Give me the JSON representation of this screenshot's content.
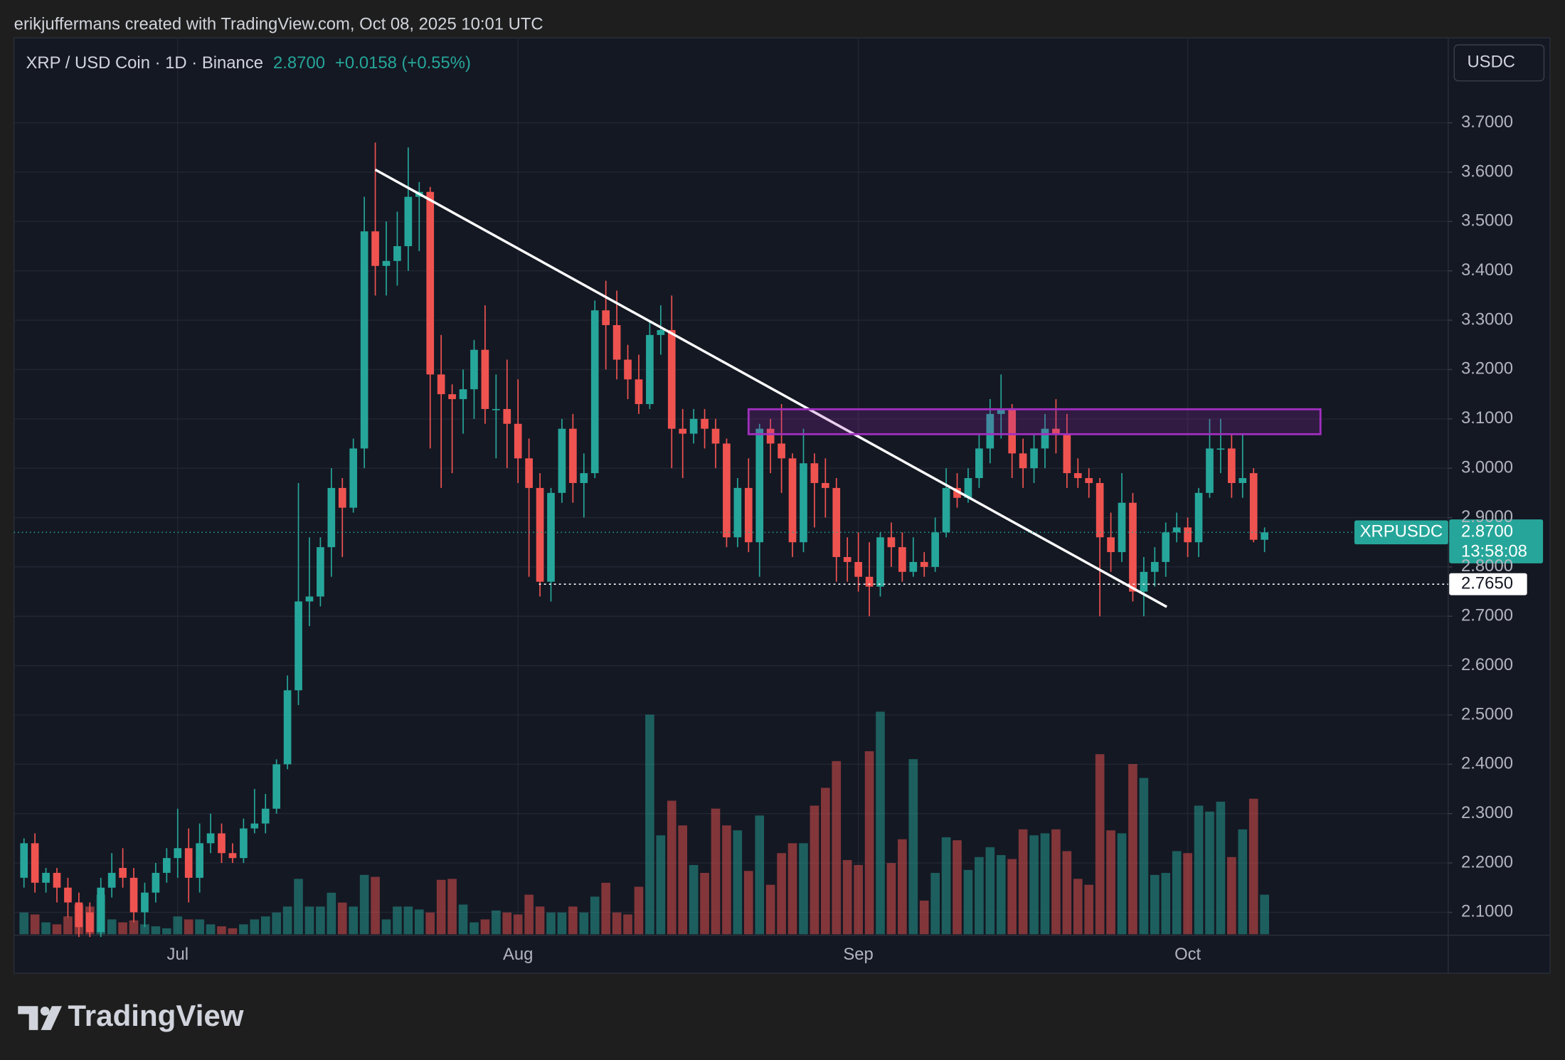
{
  "header": {
    "attribution": "erikjuffermans created with TradingView.com, Oct 08, 2025 10:01 UTC"
  },
  "chart_data": {
    "type": "candlestick",
    "title": "XRP / USD Coin · 1D · Binance",
    "last_price": {
      "value": 2.87,
      "label": "2.8700"
    },
    "change": "+0.0158 (+0.55%)",
    "symbol": "XRPUSDC",
    "countdown": "13:58:08",
    "currency": "USDC",
    "level": {
      "value": 2.765,
      "label": "2.7650"
    },
    "up_color": "#26a69a",
    "down_color": "#ef5350",
    "categories": [
      null,
      null,
      null,
      null,
      null,
      null,
      null,
      null,
      null,
      null,
      null,
      null,
      null,
      null,
      "Jul",
      null,
      null,
      null,
      null,
      null,
      null,
      null,
      null,
      null,
      null,
      null,
      null,
      null,
      null,
      null,
      null,
      null,
      null,
      null,
      null,
      null,
      null,
      null,
      null,
      null,
      null,
      null,
      null,
      null,
      null,
      "Aug",
      null,
      null,
      null,
      null,
      null,
      null,
      null,
      null,
      null,
      null,
      null,
      null,
      null,
      null,
      null,
      null,
      null,
      null,
      null,
      null,
      null,
      null,
      null,
      null,
      null,
      null,
      null,
      null,
      null,
      null,
      "Sep",
      null,
      null,
      null,
      null,
      null,
      null,
      null,
      null,
      null,
      null,
      null,
      null,
      null,
      null,
      null,
      null,
      null,
      null,
      null,
      null,
      null,
      null,
      null,
      null,
      null,
      null,
      null,
      null,
      null,
      "Oct",
      null,
      null,
      null,
      null,
      null,
      null,
      null
    ],
    "open": [
      2.17,
      2.24,
      2.16,
      2.18,
      2.15,
      2.12,
      2.1,
      2.06,
      2.15,
      2.19,
      2.17,
      2.1,
      2.14,
      2.18,
      2.21,
      2.23,
      2.17,
      2.24,
      2.26,
      2.22,
      2.21,
      2.27,
      2.28,
      2.31,
      2.4,
      2.55,
      2.73,
      2.74,
      2.84,
      2.96,
      2.92,
      3.04,
      3.48,
      3.41,
      3.42,
      3.45,
      3.55,
      3.56,
      3.19,
      3.15,
      3.14,
      3.16,
      3.24,
      3.12,
      3.12,
      3.09,
      3.02,
      2.96,
      2.77,
      2.95,
      3.08,
      2.97,
      2.99,
      3.32,
      3.29,
      3.22,
      3.18,
      3.13,
      3.27,
      3.28,
      3.08,
      3.07,
      3.1,
      3.08,
      3.05,
      2.86,
      2.96,
      2.85,
      3.08,
      3.05,
      3.02,
      2.85,
      3.01,
      2.97,
      2.96,
      2.82,
      2.81,
      2.78,
      2.76,
      2.86,
      2.84,
      2.79,
      2.81,
      2.8,
      2.87,
      2.96,
      2.94,
      2.98,
      3.04,
      3.11,
      3.12,
      3.03,
      3.0,
      3.04,
      3.08,
      3.07,
      2.99,
      2.98,
      2.97,
      2.86,
      2.83,
      2.93,
      2.75,
      2.79,
      2.81,
      2.87,
      2.88,
      2.85,
      2.95,
      3.04,
      3.04,
      2.97,
      2.99,
      2.855
    ],
    "high": [
      2.25,
      2.26,
      2.19,
      2.19,
      2.17,
      2.14,
      2.12,
      2.17,
      2.22,
      2.23,
      2.19,
      2.16,
      2.2,
      2.23,
      2.31,
      2.27,
      2.28,
      2.3,
      2.28,
      2.24,
      2.29,
      2.35,
      2.34,
      2.41,
      2.58,
      2.97,
      2.86,
      2.86,
      3.0,
      2.98,
      3.06,
      3.55,
      3.66,
      3.5,
      3.52,
      3.65,
      3.58,
      3.57,
      3.27,
      3.17,
      3.2,
      3.26,
      3.33,
      3.19,
      3.22,
      3.18,
      3.06,
      2.99,
      2.96,
      3.1,
      3.11,
      3.03,
      3.34,
      3.38,
      3.36,
      3.25,
      3.23,
      3.3,
      3.33,
      3.35,
      3.12,
      3.12,
      3.12,
      3.1,
      3.06,
      2.98,
      3.02,
      3.09,
      3.1,
      3.13,
      3.03,
      3.08,
      3.03,
      3.02,
      2.98,
      2.86,
      2.87,
      2.85,
      2.87,
      2.89,
      2.87,
      2.86,
      2.83,
      2.9,
      3.0,
      2.99,
      3.0,
      3.07,
      3.14,
      3.19,
      3.13,
      3.06,
      3.07,
      3.11,
      3.14,
      3.11,
      3.02,
      3.0,
      2.98,
      2.91,
      2.99,
      2.95,
      2.82,
      2.84,
      2.89,
      2.91,
      2.9,
      2.96,
      3.1,
      3.1,
      3.07,
      3.07,
      3.0,
      2.88
    ],
    "low": [
      2.15,
      2.14,
      2.14,
      2.12,
      2.09,
      2.05,
      2.05,
      2.05,
      2.13,
      2.15,
      2.08,
      2.07,
      2.12,
      2.16,
      2.17,
      2.12,
      2.14,
      2.22,
      2.2,
      2.2,
      2.2,
      2.26,
      2.26,
      2.3,
      2.39,
      2.52,
      2.68,
      2.72,
      2.78,
      2.82,
      2.91,
      3.0,
      3.35,
      3.35,
      3.37,
      3.4,
      3.44,
      3.04,
      2.96,
      2.99,
      3.07,
      3.1,
      3.09,
      3.02,
      3.0,
      2.97,
      2.78,
      2.74,
      2.73,
      2.93,
      2.93,
      2.9,
      2.98,
      3.2,
      3.18,
      3.14,
      3.11,
      3.12,
      3.23,
      3.0,
      2.98,
      3.05,
      3.04,
      3.0,
      2.84,
      2.84,
      2.83,
      2.78,
      2.99,
      2.95,
      2.82,
      2.83,
      2.88,
      2.9,
      2.77,
      2.77,
      2.75,
      2.7,
      2.74,
      2.8,
      2.77,
      2.78,
      2.78,
      2.79,
      2.86,
      2.92,
      2.93,
      2.96,
      3.01,
      3.06,
      2.98,
      2.96,
      2.97,
      3.0,
      3.03,
      2.96,
      2.96,
      2.94,
      2.7,
      2.79,
      2.81,
      2.73,
      2.7,
      2.76,
      2.78,
      2.85,
      2.82,
      2.82,
      2.94,
      2.99,
      2.94,
      2.94,
      2.85,
      2.83
    ],
    "close": [
      2.24,
      2.16,
      2.18,
      2.15,
      2.12,
      2.07,
      2.06,
      2.15,
      2.18,
      2.17,
      2.1,
      2.14,
      2.18,
      2.21,
      2.23,
      2.17,
      2.24,
      2.26,
      2.22,
      2.21,
      2.27,
      2.28,
      2.31,
      2.4,
      2.55,
      2.73,
      2.74,
      2.84,
      2.96,
      2.92,
      3.04,
      3.48,
      3.41,
      3.42,
      3.45,
      3.55,
      3.56,
      3.19,
      3.15,
      3.14,
      3.16,
      3.24,
      3.12,
      3.12,
      3.09,
      3.02,
      2.96,
      2.77,
      2.95,
      3.08,
      2.97,
      2.99,
      3.32,
      3.29,
      3.22,
      3.18,
      3.13,
      3.27,
      3.28,
      3.08,
      3.07,
      3.1,
      3.08,
      3.05,
      2.86,
      2.96,
      2.85,
      3.08,
      3.05,
      3.02,
      2.85,
      3.01,
      2.97,
      2.96,
      2.82,
      2.81,
      2.78,
      2.76,
      2.86,
      2.84,
      2.79,
      2.81,
      2.8,
      2.87,
      2.96,
      2.94,
      2.98,
      3.04,
      3.11,
      3.12,
      3.03,
      3.0,
      3.04,
      3.08,
      3.07,
      2.99,
      2.98,
      2.97,
      2.86,
      2.83,
      2.93,
      2.75,
      2.79,
      2.81,
      2.87,
      2.88,
      2.85,
      2.95,
      3.04,
      3.04,
      2.97,
      2.98,
      2.855,
      2.87
    ],
    "volume": [
      22,
      20,
      12,
      10,
      18,
      30,
      28,
      40,
      15,
      12,
      14,
      10,
      8,
      6,
      18,
      15,
      15,
      10,
      8,
      6,
      10,
      15,
      18,
      22,
      28,
      56,
      28,
      28,
      42,
      32,
      28,
      60,
      58,
      15,
      28,
      28,
      25,
      22,
      55,
      56,
      30,
      12,
      15,
      24,
      22,
      20,
      40,
      28,
      22,
      22,
      28,
      22,
      38,
      52,
      22,
      20,
      48,
      222,
      100,
      135,
      110,
      70,
      62,
      127,
      110,
      105,
      64,
      120,
      50,
      82,
      92,
      92,
      130,
      148,
      175,
      75,
      70,
      185,
      225,
      72,
      96,
      177,
      34,
      62,
      98,
      95,
      65,
      78,
      88,
      80,
      76,
      106,
      100,
      102,
      106,
      84,
      56,
      50,
      182,
      105,
      102,
      172,
      158,
      60,
      62,
      84,
      82,
      130,
      124,
      134,
      78,
      106,
      137,
      40
    ],
    "ylim": [
      2.0556,
      3.872
    ],
    "yticks": [
      {
        "value": 2.1,
        "label": "2.1000"
      },
      {
        "value": 2.2,
        "label": "2.2000"
      },
      {
        "value": 2.3,
        "label": "2.3000"
      },
      {
        "value": 2.4,
        "label": "2.4000"
      },
      {
        "value": 2.5,
        "label": "2.5000"
      },
      {
        "value": 2.6,
        "label": "2.6000"
      },
      {
        "value": 2.7,
        "label": "2.7000"
      },
      {
        "value": 2.8,
        "label": "2.8000"
      },
      {
        "value": 2.9,
        "label": "2.9000"
      },
      {
        "value": 3.0,
        "label": "3.0000"
      },
      {
        "value": 3.1,
        "label": "3.1000"
      },
      {
        "value": 3.2,
        "label": "3.2000"
      },
      {
        "value": 3.3,
        "label": "3.3000"
      },
      {
        "value": 3.4,
        "label": "3.4000"
      },
      {
        "value": 3.5,
        "label": "3.5000"
      },
      {
        "value": 3.6,
        "label": "3.6000"
      },
      {
        "value": 3.7,
        "label": "3.7000"
      }
    ],
    "grid": true
  },
  "footer": {
    "logo": "TradingView"
  }
}
